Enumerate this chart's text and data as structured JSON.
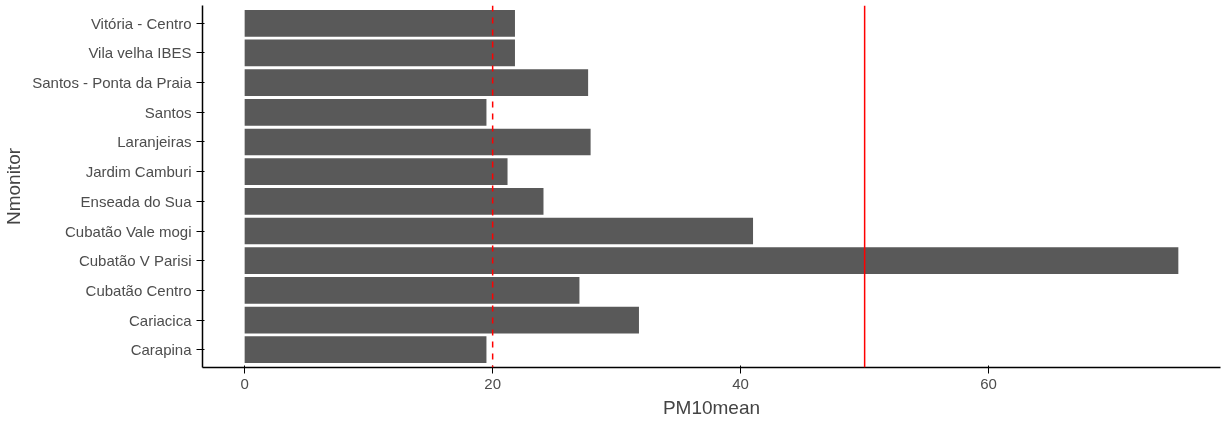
{
  "chart_data": {
    "type": "bar",
    "orientation": "horizontal",
    "xlabel": "PM10mean",
    "ylabel": "Nmonitor",
    "categories": [
      "Vitória - Centro",
      "Vila velha IBES",
      "Santos - Ponta da Praia",
      "Santos",
      "Laranjeiras",
      "Jardim Camburi",
      "Enseada do Sua",
      "Cubatão Vale mogi",
      "Cubatão V Parisi",
      "Cubatão Centro",
      "Cariacica",
      "Carapina"
    ],
    "values": [
      21.8,
      21.8,
      27.7,
      19.5,
      27.9,
      21.2,
      24.1,
      41.0,
      75.3,
      27.0,
      31.8,
      19.5
    ],
    "color": "#595959",
    "xlim": [
      -3.4,
      78.7
    ],
    "xticks": [
      0,
      20,
      40,
      60
    ],
    "grid": false,
    "ref_lines": [
      {
        "axis": "x",
        "value": 20,
        "color": "#ff0000",
        "line_style": "dashed"
      },
      {
        "axis": "x",
        "value": 50,
        "color": "#ff0000",
        "line_style": "solid"
      }
    ]
  }
}
